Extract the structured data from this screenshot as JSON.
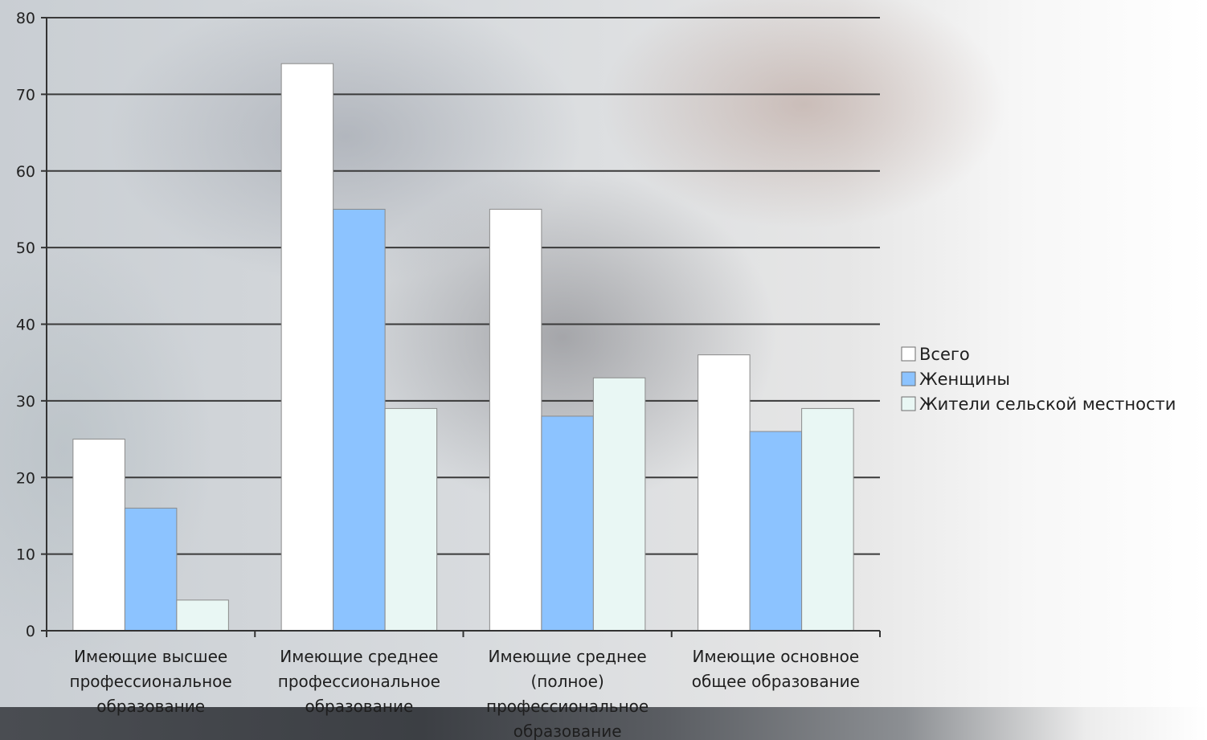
{
  "chart_data": {
    "type": "bar",
    "title": "",
    "xlabel": "",
    "ylabel": "",
    "ylim": [
      0,
      80
    ],
    "yticks": [
      0,
      10,
      20,
      30,
      40,
      50,
      60,
      70,
      80
    ],
    "grid": true,
    "legend_position": "right",
    "categories": [
      [
        "Имеющие высшее",
        "профессиональное",
        "образование"
      ],
      [
        "Имеющие среднее",
        "профессиональное",
        "образование"
      ],
      [
        "Имеющие среднее",
        "(полное)",
        "профессиональное",
        "образование"
      ],
      [
        "Имеющие основное",
        "общее образование"
      ]
    ],
    "series": [
      {
        "name": "Всего",
        "color": "#ffffff",
        "values": [
          25,
          74,
          55,
          36
        ]
      },
      {
        "name": "Женщины",
        "color": "#8cc3ff",
        "values": [
          16,
          55,
          28,
          26
        ]
      },
      {
        "name": "Жители сельской местности",
        "color": "#e9f7f4",
        "values": [
          4,
          29,
          33,
          29
        ]
      }
    ]
  }
}
